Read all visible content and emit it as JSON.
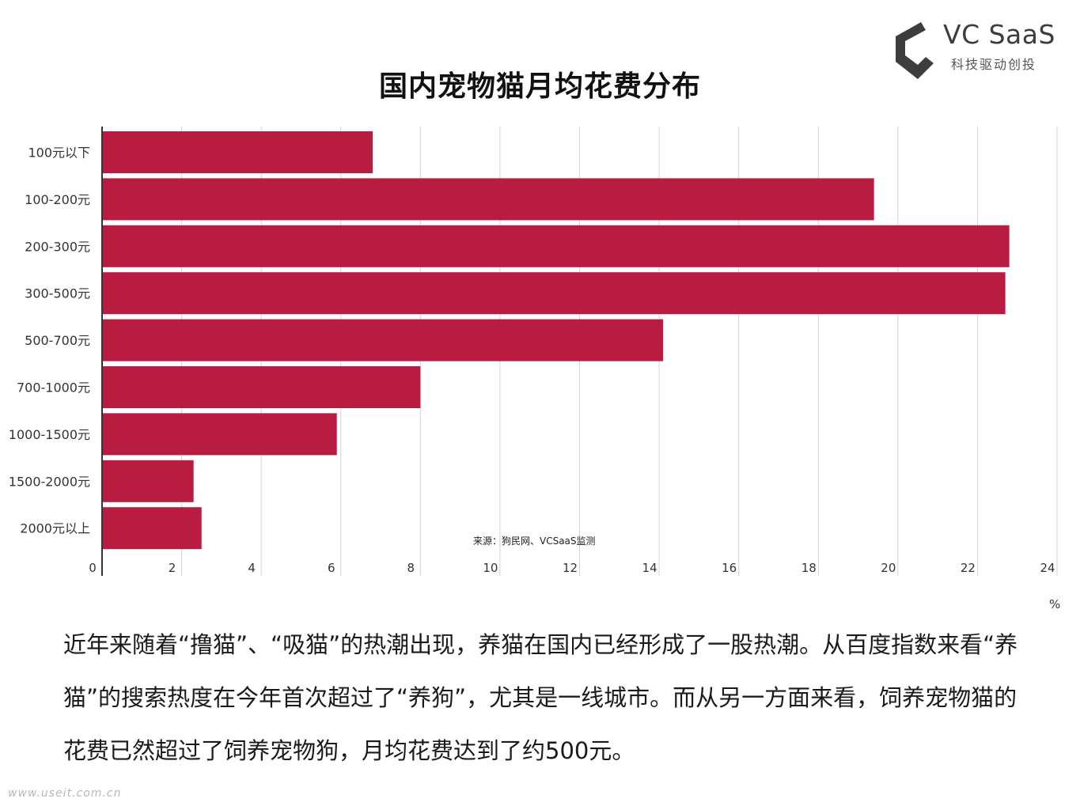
{
  "logo": {
    "brand": "VC SaaS",
    "tagline": "科技驱动创投",
    "icon": "c-shaped-brand-mark-icon",
    "color": "#3d3d3d"
  },
  "source": "来源：狗民网、VCSaaS监测",
  "unit": "%",
  "paragraph": "近年来随着“撸猫”、“吸猫”的热潮出现，养猫在国内已经形成了一股热潮。从百度指数来看“养猫”的搜索热度在今年首次超过了“养狗”，尤其是一线城市。而从另一方面来看，饲养宠物猫的花费已然超过了饲养宠物狗，月均花费达到了约500元。",
  "watermark": "www.useit.com.cn",
  "chart_data": {
    "type": "bar",
    "orientation": "horizontal",
    "title": "国内宠物猫月均花费分布",
    "categories": [
      "100元以下",
      "100-200元",
      "200-300元",
      "300-500元",
      "500-700元",
      "700-1000元",
      "1000-1500元",
      "1500-2000元",
      "2000元以上"
    ],
    "values": [
      6.8,
      19.4,
      22.8,
      22.7,
      14.1,
      8.0,
      5.9,
      2.3,
      2.5
    ],
    "xlim": [
      0,
      24
    ],
    "xticks": [
      0,
      2,
      4,
      6,
      8,
      10,
      12,
      14,
      16,
      18,
      20,
      22,
      24
    ],
    "xunit": "%",
    "grid": true,
    "bar_color": "#b81c40"
  }
}
